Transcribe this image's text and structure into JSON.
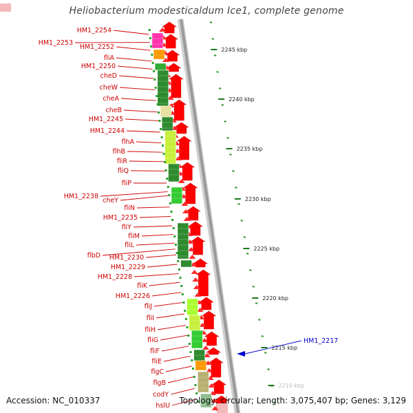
{
  "title": "Heliobacterium modesticaldum Ice1, complete genome",
  "accession": "Accession: NC_010337",
  "topology": "Topology: circular; Length: 3,075,407 bp; Genes: 3,129",
  "colors": {
    "gene_label": "#cc0000",
    "highlight_label": "#0000cc",
    "arrow": "#ff0000",
    "ruler": "#339933",
    "backbone": "#9a9a9a"
  },
  "ruler_ticks": [
    "2245 kbp",
    "2240 kbp",
    "2235 kbp",
    "2230 kbp",
    "2225 kbp",
    "2220 kbp",
    "2215 kbp",
    "2210 kbp"
  ],
  "highlight_label": "HM1_2217",
  "gene_labels": [
    "HM1_2254",
    "HM1_2253",
    "HM1_2252",
    "fliA",
    "HM1_2250",
    "cheD",
    "cheW",
    "cheA",
    "cheB",
    "HM1_2245",
    "HM1_2244",
    "flhA",
    "flhB",
    "fliR",
    "fliQ",
    "fliP",
    "HM1_2238",
    "cheY",
    "fliN",
    "HM1_2235",
    "fliY",
    "fliM",
    "fliL",
    "flbD",
    "HM1_2230",
    "HM1_2229",
    "HM1_2228",
    "fliK",
    "HM1_2226",
    "fliJ",
    "fliI",
    "fliH",
    "fliG",
    "fliF",
    "fliE",
    "flgC",
    "flgB",
    "codY",
    "hslU"
  ]
}
